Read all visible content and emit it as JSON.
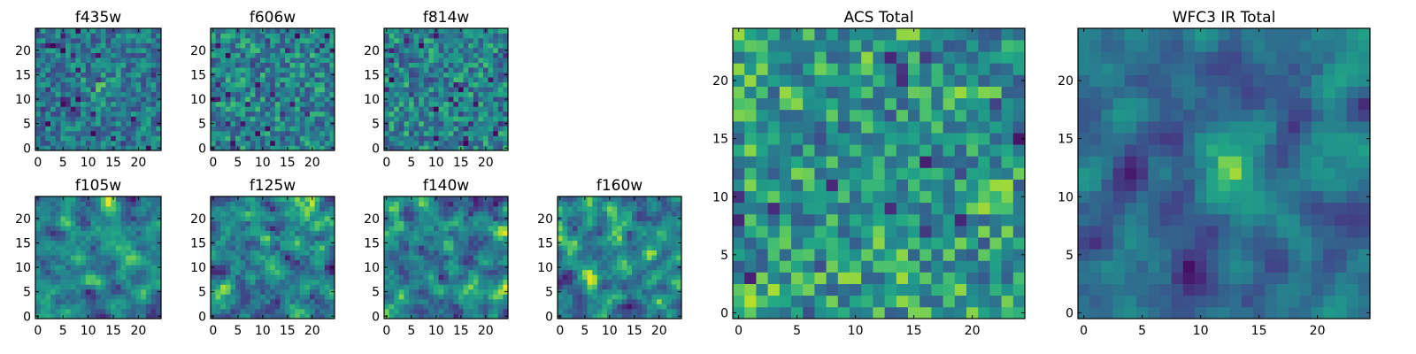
{
  "figure": {
    "description": "Grid of 2D pixel image panels (heatmaps) of HST filter cutouts with viridis colormap",
    "colormap": "viridis",
    "colors": {
      "viridis_low": "#440154",
      "viridis_mid": "#21918c",
      "viridis_high": "#fde725",
      "axes_frame": "#000000",
      "background": "#ffffff"
    }
  },
  "chart_data": [
    {
      "id": "f435w",
      "type": "heatmap",
      "title": "f435w",
      "grid_size": [
        25,
        25
      ],
      "xlim": [
        0,
        24
      ],
      "ylim": [
        0,
        24
      ],
      "xticks": [
        0,
        5,
        10,
        15,
        20
      ],
      "yticks": [
        0,
        5,
        10,
        15,
        20
      ],
      "seed": 11,
      "smooth": 0.0,
      "center_boost": 0.12
    },
    {
      "id": "f606w",
      "type": "heatmap",
      "title": "f606w",
      "grid_size": [
        25,
        25
      ],
      "xlim": [
        0,
        24
      ],
      "ylim": [
        0,
        24
      ],
      "xticks": [
        0,
        5,
        10,
        15,
        20
      ],
      "yticks": [
        0,
        5,
        10,
        15,
        20
      ],
      "seed": 23,
      "smooth": 0.0,
      "center_boost": 0.0
    },
    {
      "id": "f814w",
      "type": "heatmap",
      "title": "f814w",
      "grid_size": [
        25,
        25
      ],
      "xlim": [
        0,
        24
      ],
      "ylim": [
        0,
        24
      ],
      "xticks": [
        0,
        5,
        10,
        15,
        20
      ],
      "yticks": [
        0,
        5,
        10,
        15,
        20
      ],
      "seed": 37,
      "smooth": 0.0,
      "center_boost": 0.0
    },
    {
      "id": "f105w",
      "type": "heatmap",
      "title": "f105w",
      "grid_size": [
        25,
        25
      ],
      "xlim": [
        0,
        24
      ],
      "ylim": [
        0,
        24
      ],
      "xticks": [
        0,
        5,
        10,
        15,
        20
      ],
      "yticks": [
        0,
        5,
        10,
        15,
        20
      ],
      "seed": 41,
      "smooth": 0.6,
      "center_boost": 0.0
    },
    {
      "id": "f125w",
      "type": "heatmap",
      "title": "f125w",
      "grid_size": [
        25,
        25
      ],
      "xlim": [
        0,
        24
      ],
      "ylim": [
        0,
        24
      ],
      "xticks": [
        0,
        5,
        10,
        15,
        20
      ],
      "yticks": [
        0,
        5,
        10,
        15,
        20
      ],
      "seed": 53,
      "smooth": 0.6,
      "center_boost": 0.05
    },
    {
      "id": "f140w",
      "type": "heatmap",
      "title": "f140w",
      "grid_size": [
        25,
        25
      ],
      "xlim": [
        0,
        24
      ],
      "ylim": [
        0,
        24
      ],
      "xticks": [
        0,
        5,
        10,
        15,
        20
      ],
      "yticks": [
        0,
        5,
        10,
        15,
        20
      ],
      "seed": 67,
      "smooth": 0.6,
      "center_boost": 0.0
    },
    {
      "id": "f160w",
      "type": "heatmap",
      "title": "f160w",
      "grid_size": [
        25,
        25
      ],
      "xlim": [
        0,
        24
      ],
      "ylim": [
        0,
        24
      ],
      "xticks": [
        0,
        5,
        10,
        15,
        20
      ],
      "yticks": [
        0,
        5,
        10,
        15,
        20
      ],
      "seed": 79,
      "smooth": 0.6,
      "center_boost": 0.0
    },
    {
      "id": "acs-total",
      "type": "heatmap",
      "title": "ACS Total",
      "grid_size": [
        25,
        25
      ],
      "xlim": [
        0,
        24
      ],
      "ylim": [
        0,
        24
      ],
      "xticks": [
        0,
        5,
        10,
        15,
        20
      ],
      "yticks": [
        0,
        5,
        10,
        15,
        20
      ],
      "seed": 97,
      "smooth": 0.25,
      "center_boost": 0.08
    },
    {
      "id": "wfc3-ir-total",
      "type": "heatmap",
      "title": "WFC3 IR Total",
      "grid_size": [
        25,
        25
      ],
      "xlim": [
        0,
        24
      ],
      "ylim": [
        0,
        24
      ],
      "xticks": [
        0,
        5,
        10,
        15,
        20
      ],
      "yticks": [
        0,
        5,
        10,
        15,
        20
      ],
      "seed": 113,
      "smooth": 0.7,
      "center_boost": 0.45
    }
  ]
}
